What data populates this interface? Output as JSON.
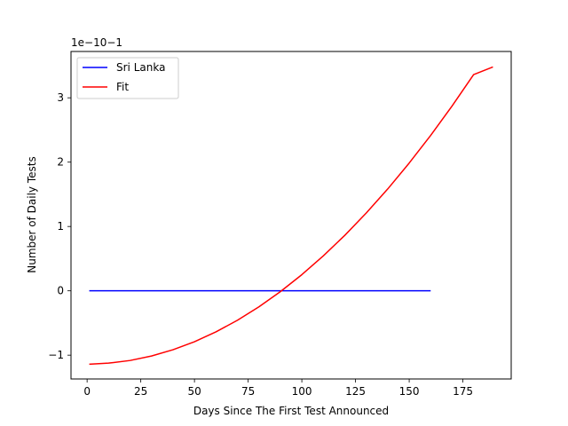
{
  "chart_data": {
    "type": "line",
    "xlabel": "Days Since The First Test Announced",
    "ylabel": "Number of Daily Tests",
    "offset_text": "1e−10−1",
    "xlim": [
      -7.5,
      197.5
    ],
    "ylim": [
      -1.37,
      3.72
    ],
    "x_ticks": [
      0,
      25,
      50,
      75,
      100,
      125,
      150,
      175
    ],
    "x_tick_labels": [
      "0",
      "25",
      "50",
      "75",
      "100",
      "125",
      "150",
      "175"
    ],
    "y_ticks": [
      -1,
      0,
      1,
      2,
      3
    ],
    "y_tick_labels": [
      "−1",
      "0",
      "1",
      "2",
      "3"
    ],
    "grid": false,
    "legend_position": "upper-left",
    "series": [
      {
        "name": "Sri Lanka",
        "color": "#0000ff",
        "x": [
          1,
          160
        ],
        "y": [
          0,
          0
        ]
      },
      {
        "name": "Fit",
        "color": "#ff0000",
        "x": [
          1,
          10,
          20,
          30,
          40,
          50,
          60,
          70,
          80,
          90,
          100,
          110,
          120,
          130,
          140,
          150,
          160,
          170,
          180,
          189
        ],
        "y": [
          -1.14,
          -1.124,
          -1.083,
          -1.013,
          -0.916,
          -0.791,
          -0.638,
          -0.458,
          -0.249,
          -0.013,
          0.251,
          0.543,
          0.862,
          1.209,
          1.583,
          1.986,
          2.416,
          2.874,
          3.36,
          3.48
        ]
      }
    ]
  }
}
